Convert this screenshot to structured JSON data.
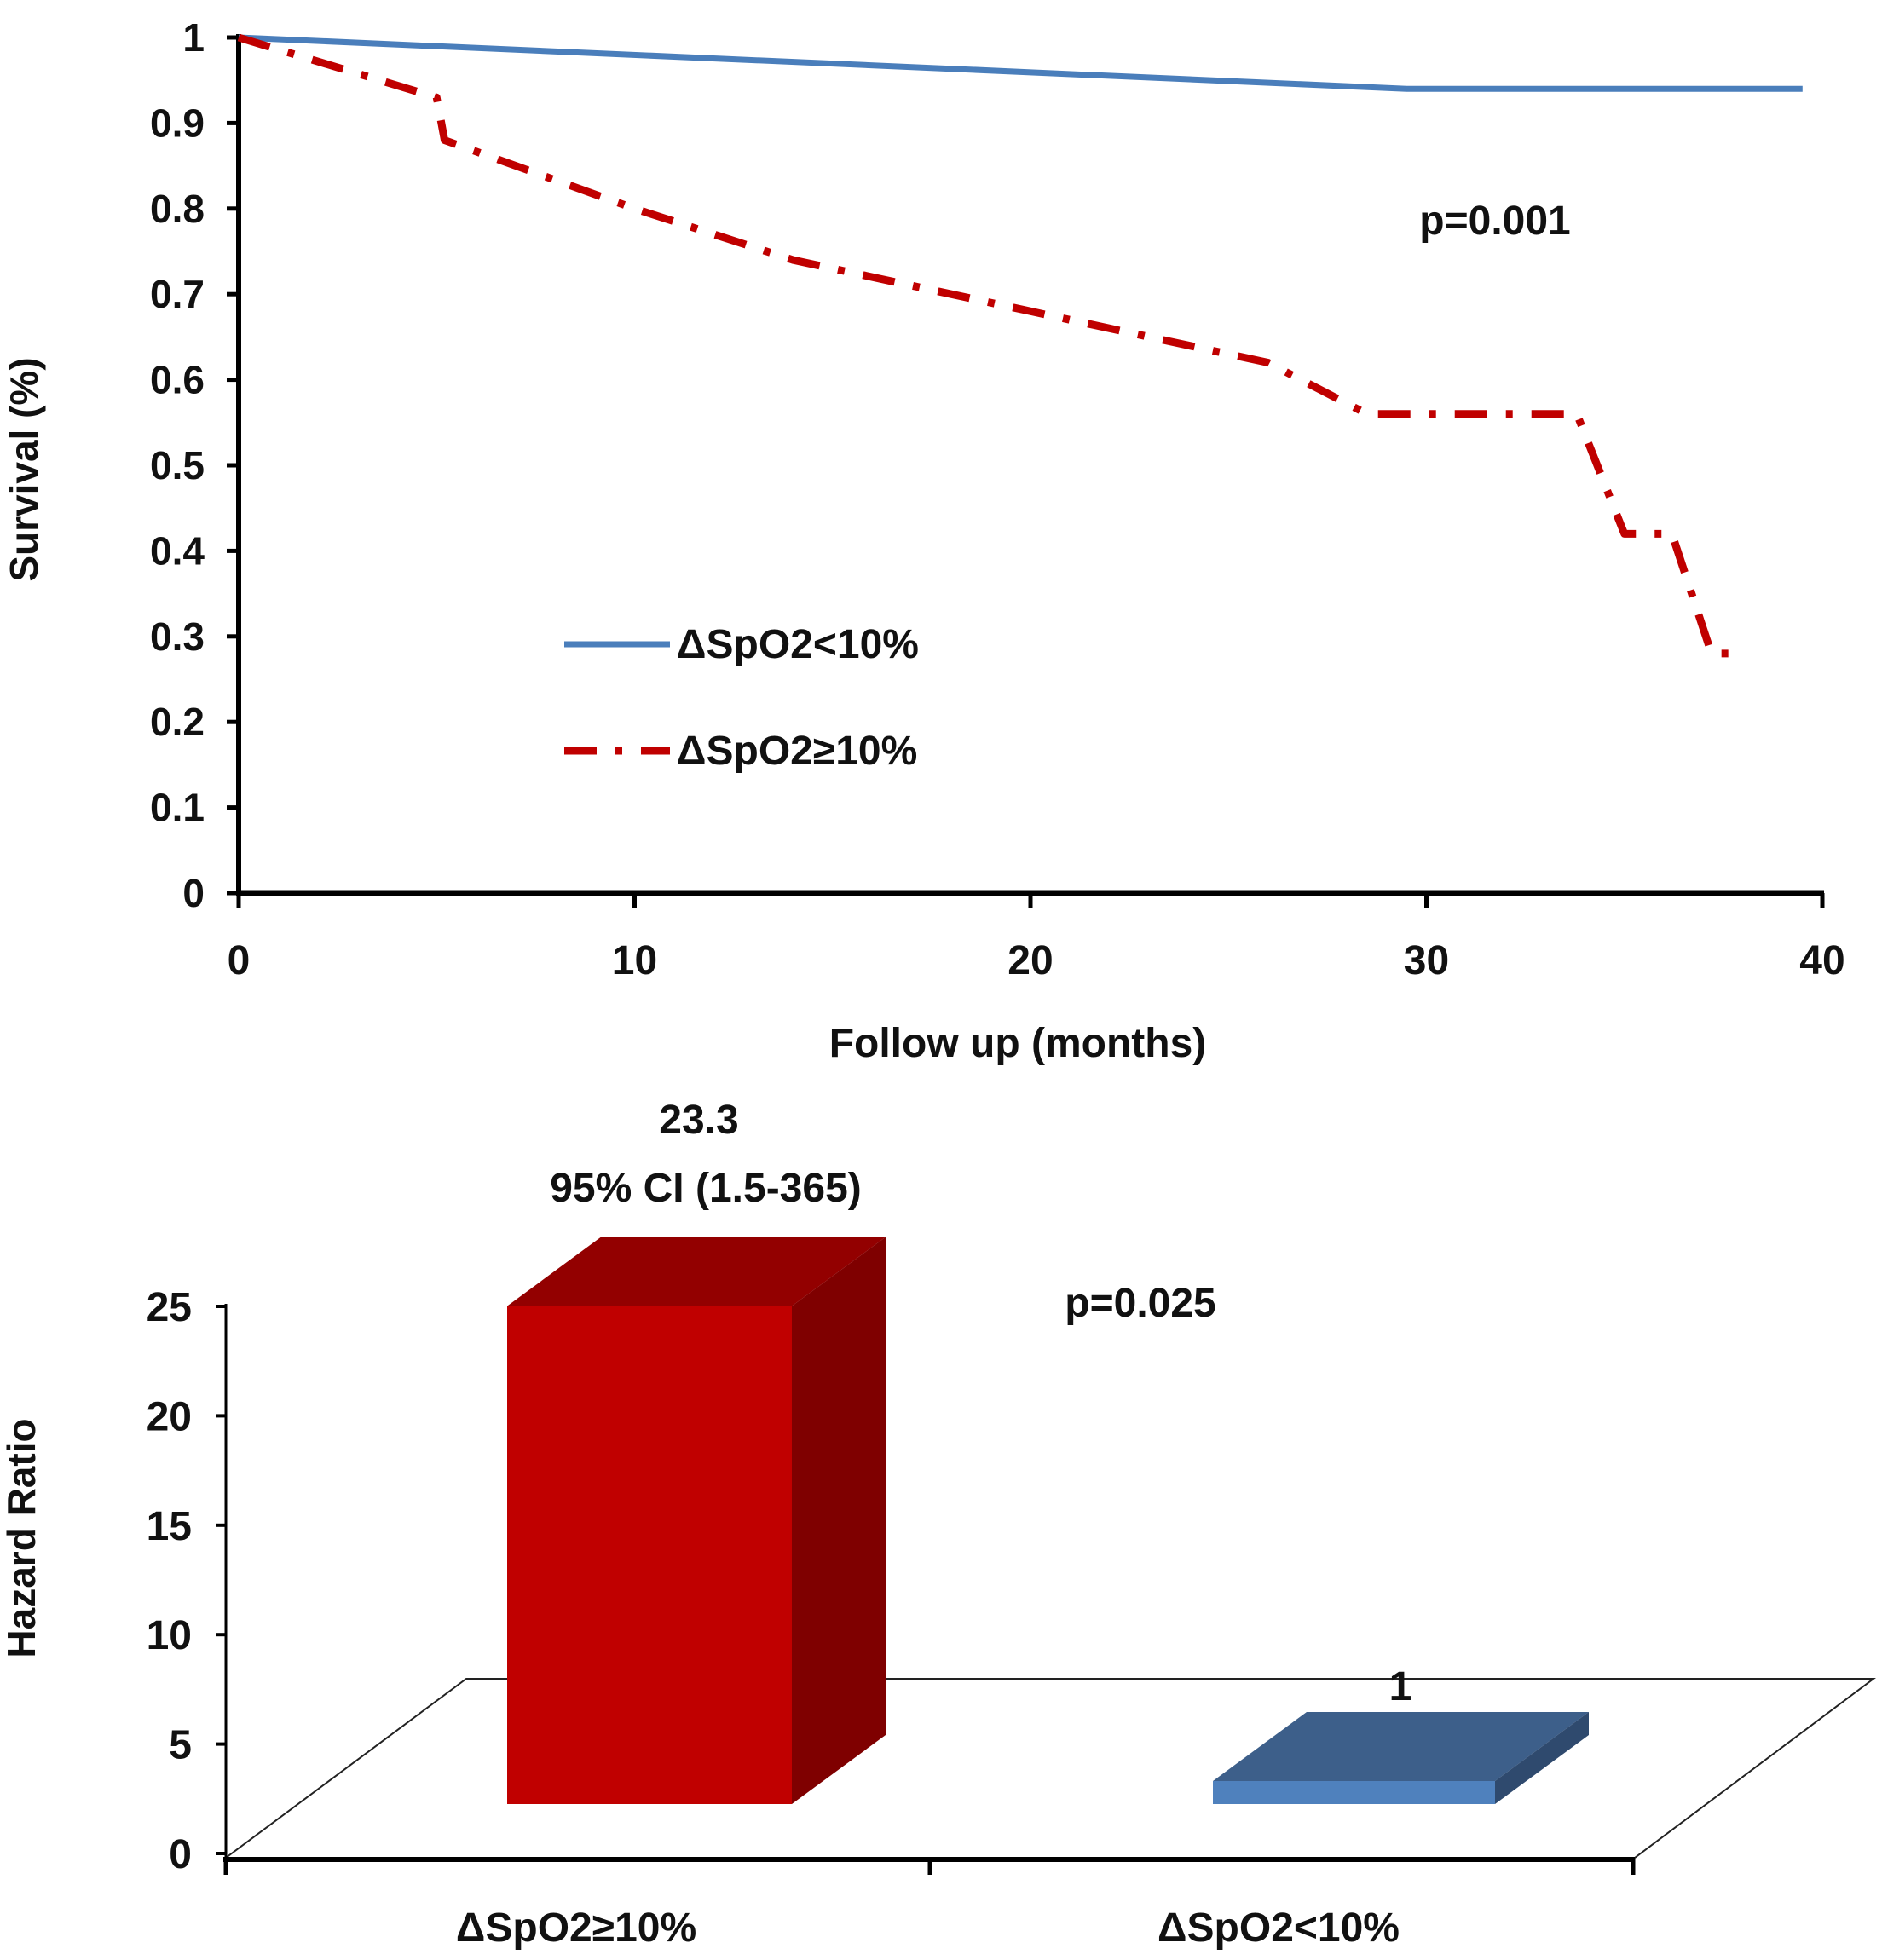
{
  "colors": {
    "blue": "#4a7ebb",
    "red": "#c00000",
    "red_side": "#7f0000",
    "red_top": "#930000",
    "blue_front": "#4f81bd",
    "blue_top": "#3d5f8a",
    "blue_side": "#2f4a6e"
  },
  "chart_data": [
    {
      "type": "line",
      "title": "",
      "xlabel": "Follow up (months)",
      "ylabel": "Survival (%)",
      "xlim": [
        0,
        40
      ],
      "ylim": [
        0,
        1
      ],
      "xticks": [
        "0",
        "10",
        "20",
        "30",
        "40"
      ],
      "yticks": [
        "0",
        "0.1",
        "0.2",
        "0.3",
        "0.4",
        "0.5",
        "0.6",
        "0.7",
        "0.8",
        "0.9",
        "1"
      ],
      "annotation": "p=0.001",
      "legend_position": "center-left",
      "series": [
        {
          "name": "ΔSpO2<10%",
          "style": "solid",
          "x": [
            0,
            29.5,
            39.5
          ],
          "y": [
            1,
            0.94,
            0.94
          ]
        },
        {
          "name": "ΔSpO2≥10%",
          "style": "dash-dot",
          "x": [
            0,
            5,
            5.2,
            10,
            14,
            20,
            26,
            28.5,
            33.8,
            35,
            36.2,
            37.2,
            38
          ],
          "y": [
            1,
            0.93,
            0.88,
            0.8,
            0.74,
            0.68,
            0.62,
            0.56,
            0.56,
            0.42,
            0.42,
            0.28,
            0.28
          ]
        }
      ]
    },
    {
      "type": "bar",
      "title": "",
      "xlabel": "",
      "ylabel": "Hazard Ratio",
      "ylim": [
        0,
        25
      ],
      "yticks": [
        "0",
        "5",
        "10",
        "15",
        "20",
        "25"
      ],
      "categories": [
        "ΔSpO2≥10%",
        "ΔSpO2<10%"
      ],
      "values": [
        23.3,
        1
      ],
      "data_labels": [
        "23.3",
        "1"
      ],
      "ci_label": "95% CI (1.5-365)",
      "annotation": "p=0.025"
    }
  ]
}
